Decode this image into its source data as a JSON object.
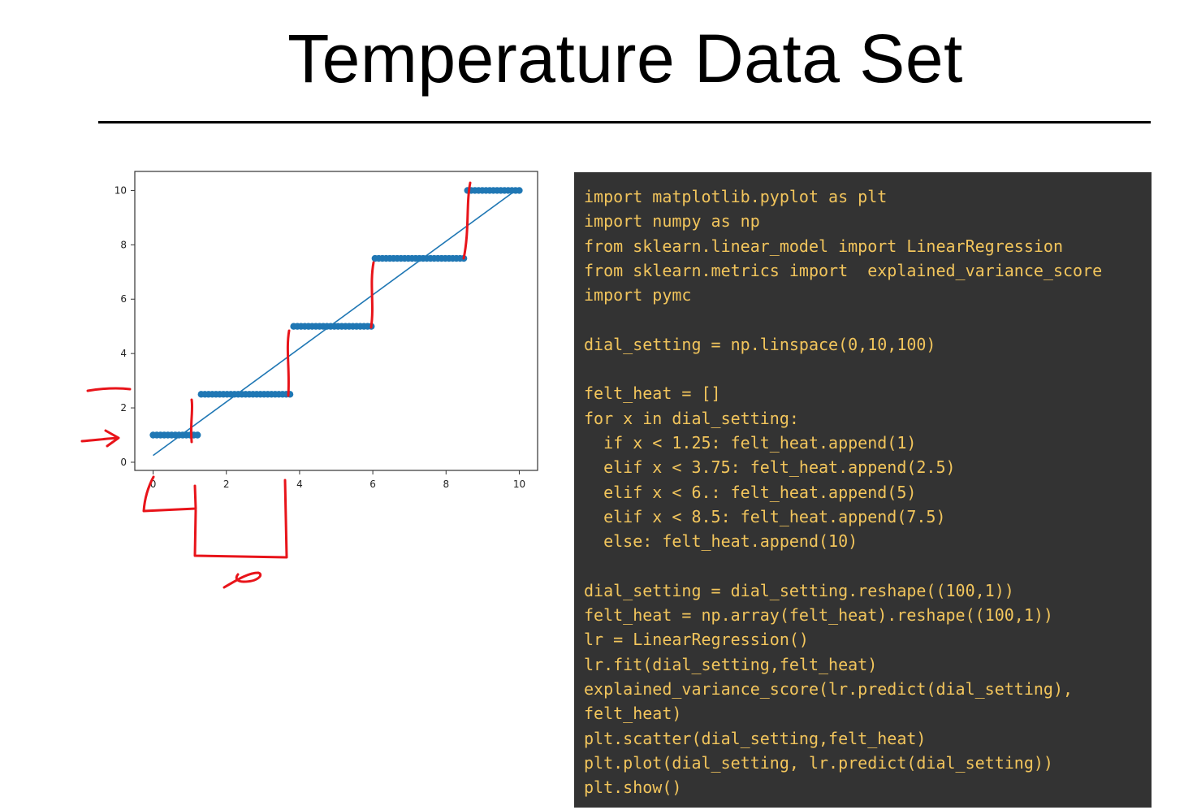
{
  "slide": {
    "title": "Temperature Data Set",
    "colors": {
      "accent_blue": "#1f77b4",
      "annotation_red": "#e8141a",
      "code_bg": "#333333",
      "code_fg": "#f2c55c"
    }
  },
  "chart_data": {
    "type": "scatter",
    "xlim": [
      -0.5,
      10.5
    ],
    "ylim": [
      -0.3,
      10.7
    ],
    "x_ticks": [
      "0",
      "2",
      "4",
      "6",
      "8",
      "10"
    ],
    "y_ticks": [
      "0",
      "2",
      "4",
      "6",
      "8",
      "10"
    ],
    "grid": false,
    "segments": [
      {
        "x0": 0.0,
        "x1": 1.25,
        "y": 1
      },
      {
        "x0": 1.25,
        "x1": 3.75,
        "y": 2.5
      },
      {
        "x0": 3.75,
        "x1": 6.0,
        "y": 5
      },
      {
        "x0": 6.0,
        "x1": 8.5,
        "y": 7.5
      },
      {
        "x0": 8.5,
        "x1": 10.0,
        "y": 10
      }
    ],
    "n_points": 100,
    "fit_line": {
      "x": [
        0,
        10
      ],
      "y": [
        0.25,
        10.1
      ]
    },
    "series_color": "#1f77b4"
  },
  "code": {
    "lines": [
      "import matplotlib.pyplot as plt",
      "import numpy as np",
      "from sklearn.linear_model import LinearRegression",
      "from sklearn.metrics import  explained_variance_score",
      "import pymc",
      "",
      "dial_setting = np.linspace(0,10,100)",
      "",
      "felt_heat = []",
      "for x in dial_setting:",
      "  if x < 1.25: felt_heat.append(1)",
      "  elif x < 3.75: felt_heat.append(2.5)",
      "  elif x < 6.: felt_heat.append(5)",
      "  elif x < 8.5: felt_heat.append(7.5)",
      "  else: felt_heat.append(10)",
      "",
      "dial_setting = dial_setting.reshape((100,1))",
      "felt_heat = np.array(felt_heat).reshape((100,1))",
      "lr = LinearRegression()",
      "lr.fit(dial_setting,felt_heat)",
      "explained_variance_score(lr.predict(dial_setting),",
      "felt_heat)",
      "plt.scatter(dial_setting,felt_heat)",
      "plt.plot(dial_setting, lr.predict(dial_setting))",
      "plt.show()"
    ]
  }
}
